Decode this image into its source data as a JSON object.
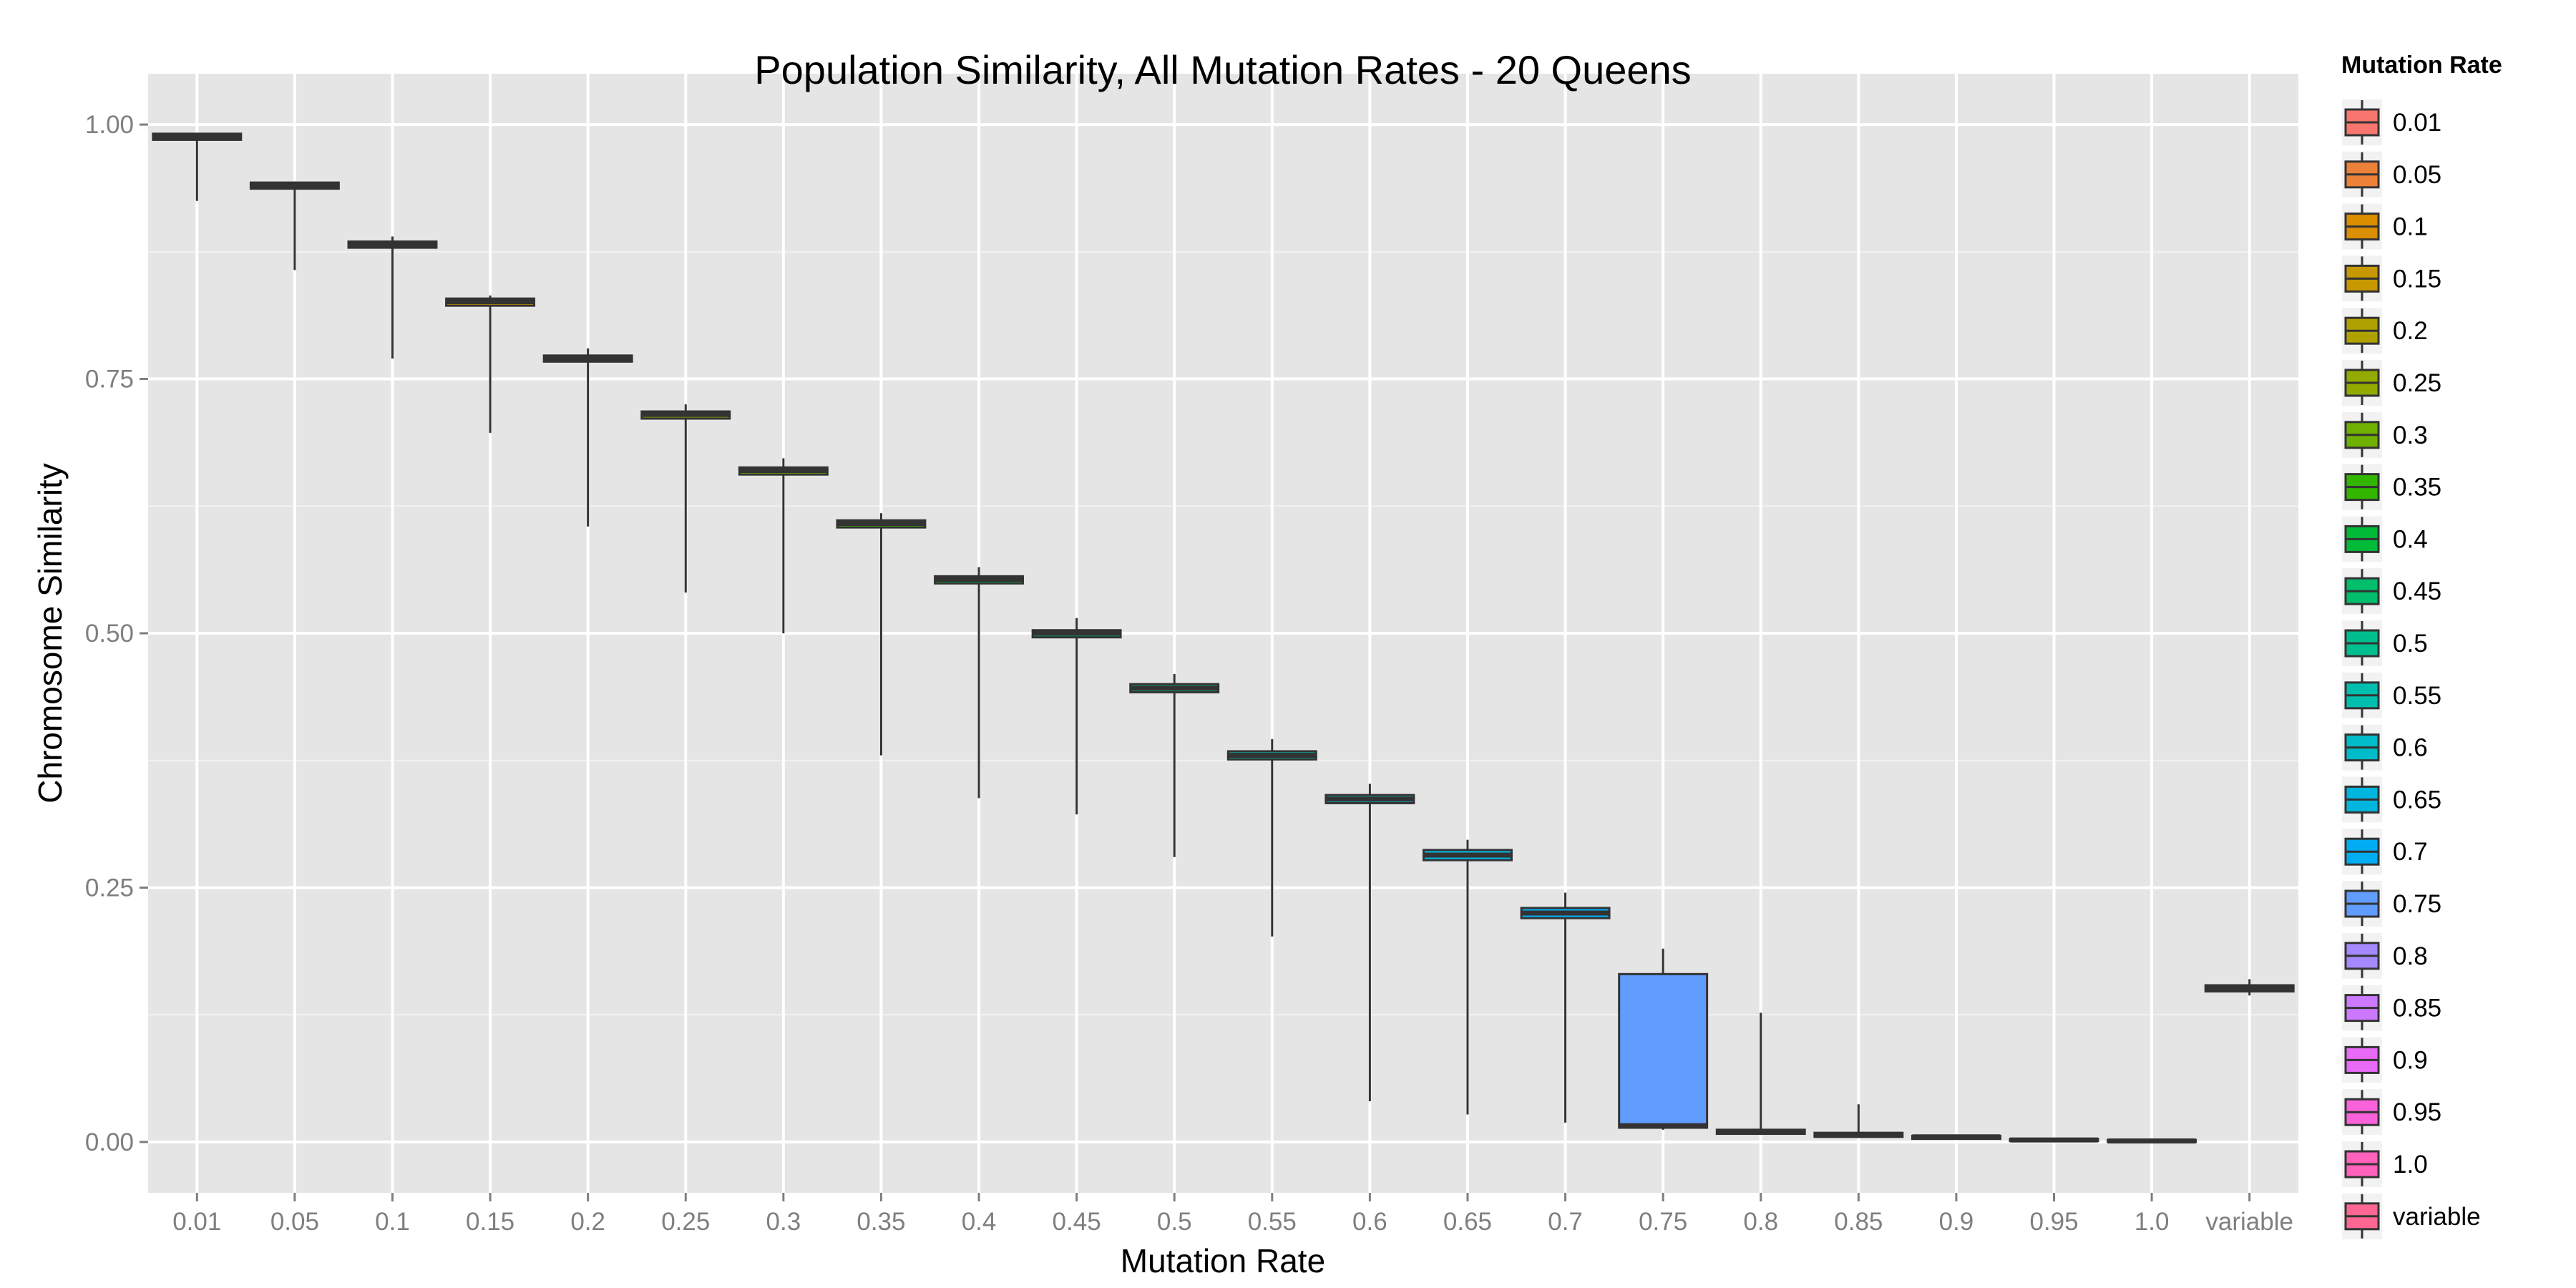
{
  "chart_data": {
    "type": "boxplot",
    "title": "Population Similarity, All Mutation Rates - 20 Queens",
    "xlabel": "Mutation Rate",
    "ylabel": "Chromosome Similarity",
    "ylim": [
      -0.05,
      1.05
    ],
    "y_ticks": [
      "0.00",
      "0.25",
      "0.50",
      "0.75",
      "1.00"
    ],
    "y_tick_values": [
      0,
      0.25,
      0.5,
      0.75,
      1.0
    ],
    "grid": true,
    "legend_title": "Mutation Rate",
    "legend_position": "right",
    "categories": [
      "0.01",
      "0.05",
      "0.1",
      "0.15",
      "0.2",
      "0.25",
      "0.3",
      "0.35",
      "0.4",
      "0.45",
      "0.5",
      "0.55",
      "0.6",
      "0.65",
      "0.7",
      "0.75",
      "0.8",
      "0.85",
      "0.9",
      "0.95",
      "1.0",
      "variable"
    ],
    "colors": [
      "#F8766D",
      "#EC8239",
      "#DB8E00",
      "#C79800",
      "#AFA100",
      "#93AA00",
      "#6FB000",
      "#33B600",
      "#00BA38",
      "#00BE6C",
      "#00BF8F",
      "#00BFAE",
      "#00BCC8",
      "#00B6DF",
      "#00ADF2",
      "#619CFF",
      "#A58AFF",
      "#CD79FF",
      "#E96AF6",
      "#FA62DB",
      "#FF61BB",
      "#FF6792"
    ],
    "boxes": [
      {
        "whisker_low": 0.925,
        "q1": 0.985,
        "median": 0.988,
        "q3": 0.991,
        "whisker_high": 0.992
      },
      {
        "whisker_low": 0.857,
        "q1": 0.937,
        "median": 0.94,
        "q3": 0.943,
        "whisker_high": 0.944
      },
      {
        "whisker_low": 0.77,
        "q1": 0.879,
        "median": 0.882,
        "q3": 0.885,
        "whisker_high": 0.89
      },
      {
        "whisker_low": 0.697,
        "q1": 0.822,
        "median": 0.826,
        "q3": 0.829,
        "whisker_high": 0.832
      },
      {
        "whisker_low": 0.605,
        "q1": 0.767,
        "median": 0.77,
        "q3": 0.773,
        "whisker_high": 0.78
      },
      {
        "whisker_low": 0.54,
        "q1": 0.711,
        "median": 0.715,
        "q3": 0.718,
        "whisker_high": 0.725
      },
      {
        "whisker_low": 0.5,
        "q1": 0.656,
        "median": 0.66,
        "q3": 0.663,
        "whisker_high": 0.672
      },
      {
        "whisker_low": 0.38,
        "q1": 0.604,
        "median": 0.608,
        "q3": 0.611,
        "whisker_high": 0.618
      },
      {
        "whisker_low": 0.338,
        "q1": 0.549,
        "median": 0.553,
        "q3": 0.556,
        "whisker_high": 0.565
      },
      {
        "whisker_low": 0.322,
        "q1": 0.496,
        "median": 0.5,
        "q3": 0.503,
        "whisker_high": 0.515
      },
      {
        "whisker_low": 0.28,
        "q1": 0.442,
        "median": 0.446,
        "q3": 0.45,
        "whisker_high": 0.46
      },
      {
        "whisker_low": 0.202,
        "q1": 0.376,
        "median": 0.38,
        "q3": 0.384,
        "whisker_high": 0.396
      },
      {
        "whisker_low": 0.04,
        "q1": 0.333,
        "median": 0.337,
        "q3": 0.341,
        "whisker_high": 0.352
      },
      {
        "whisker_low": 0.027,
        "q1": 0.277,
        "median": 0.282,
        "q3": 0.287,
        "whisker_high": 0.297
      },
      {
        "whisker_low": 0.019,
        "q1": 0.22,
        "median": 0.225,
        "q3": 0.23,
        "whisker_high": 0.245
      },
      {
        "whisker_low": 0.012,
        "q1": 0.014,
        "median": 0.016,
        "q3": 0.165,
        "whisker_high": 0.19
      },
      {
        "whisker_low": 0.008,
        "q1": 0.008,
        "median": 0.01,
        "q3": 0.012,
        "whisker_high": 0.127
      },
      {
        "whisker_low": 0.004,
        "q1": 0.005,
        "median": 0.007,
        "q3": 0.009,
        "whisker_high": 0.037
      },
      {
        "whisker_low": 0.003,
        "q1": 0.003,
        "median": 0.005,
        "q3": 0.006,
        "whisker_high": 0.007
      },
      {
        "whisker_low": 0.001,
        "q1": 0.001,
        "median": 0.002,
        "q3": 0.003,
        "whisker_high": 0.004
      },
      {
        "whisker_low": 0.0,
        "q1": 0.0,
        "median": 0.001,
        "q3": 0.002,
        "whisker_high": 0.002
      },
      {
        "whisker_low": 0.144,
        "q1": 0.148,
        "median": 0.151,
        "q3": 0.154,
        "whisker_high": 0.16
      }
    ]
  }
}
